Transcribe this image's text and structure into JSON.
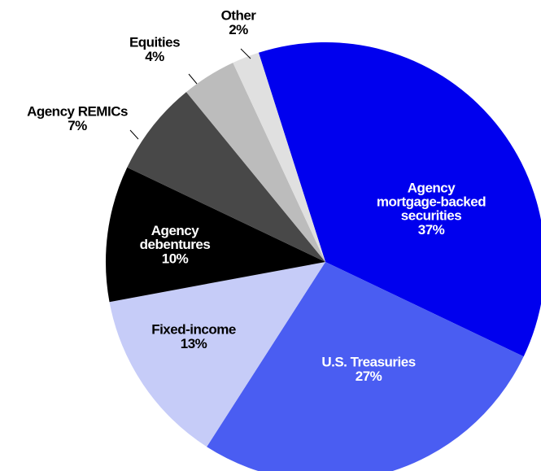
{
  "chart_data": {
    "type": "pie",
    "categories": [
      "Agency\nmortgage-backed\nsecurities",
      "U.S. Treasuries",
      "Fixed-income",
      "Agency\ndebentures",
      "Agency REMICs",
      "Equities",
      "Other"
    ],
    "values": [
      37,
      27,
      13,
      10,
      7,
      4,
      2
    ],
    "value_labels": [
      "37%",
      "27%",
      "13%",
      "10%",
      "7%",
      "4%",
      "2%"
    ],
    "colors": [
      "#0000ee",
      "#4a5df2",
      "#c6ccf8",
      "#000000",
      "#484848",
      "#bcbcbc",
      "#e0e0e0"
    ]
  }
}
